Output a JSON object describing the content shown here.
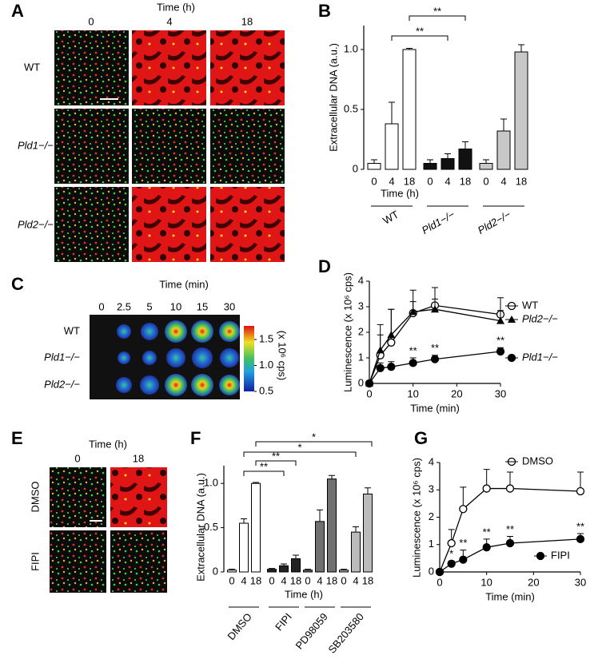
{
  "images": [
    {
      "panel": "A",
      "title": "Time (h)",
      "columns": [
        "0",
        "4",
        "18"
      ],
      "rows": [
        "WT",
        "Pld1−/−",
        "Pld2−/−"
      ]
    },
    {
      "panel": "C",
      "title": "Time (min)",
      "columns": [
        "0",
        "2.5",
        "5",
        "10",
        "15",
        "30"
      ],
      "rows": [
        "WT",
        "Pld1−/−",
        "Pld2−/−"
      ],
      "colorbar": {
        "label": "(x 10⁶ cps)",
        "ticks": [
          1.5,
          {
            "value": 1,
            "label": "1.0"
          },
          0.5
        ]
      }
    },
    {
      "panel": "E",
      "title": "Time (h)",
      "columns": [
        "0",
        "18"
      ],
      "rows": [
        "DMSO",
        "FIPI"
      ]
    }
  ],
  "chart_data": [
    {
      "type": "bar",
      "panel": "B",
      "ylabel": "Extracellular DNA (a.u.)",
      "xlabel": "Time (h)",
      "categories": [
        "0",
        "4",
        "18"
      ],
      "ylim": [
        0,
        1.2
      ],
      "yticks": [
        0,
        0.5,
        {
          "value": 1,
          "label": "1.0"
        }
      ],
      "series": [
        {
          "name": "WT",
          "color": "#ffffff",
          "values": [
            0.05,
            0.38,
            1.0
          ],
          "errors": [
            0.03,
            0.18,
            0.01
          ]
        },
        {
          "name": "Pld1−/−",
          "italic": true,
          "color": "#111111",
          "values": [
            0.05,
            0.09,
            0.17
          ],
          "errors": [
            0.03,
            0.04,
            0.06
          ]
        },
        {
          "name": "Pld2−/−",
          "italic": true,
          "color": "#c8c8c8",
          "values": [
            0.05,
            0.32,
            0.98
          ],
          "errors": [
            0.03,
            0.1,
            0.06
          ]
        }
      ],
      "significance": [
        "**",
        "**"
      ]
    },
    {
      "type": "line",
      "panel": "D",
      "ylabel": "Luminescence (x 10⁶ cps)",
      "xlabel": "Time (min)",
      "x": [
        0,
        2.5,
        5,
        10,
        15,
        30
      ],
      "xlim": [
        0,
        30
      ],
      "xticks": [
        0,
        10,
        20,
        30
      ],
      "ylim": [
        0,
        4
      ],
      "yticks": [
        0,
        1,
        2,
        3,
        4
      ],
      "series": [
        {
          "name": "WT",
          "marker": "circle-open",
          "color": "#000000",
          "values": [
            0,
            1.1,
            1.6,
            2.75,
            3.05,
            2.7
          ],
          "errors": [
            0,
            1.2,
            1.3,
            0.9,
            0.7,
            0.65
          ]
        },
        {
          "name": "Pld2−/−",
          "italic": true,
          "marker": "triangle",
          "color": "#000000",
          "values": [
            0,
            1.3,
            1.9,
            2.8,
            2.9,
            2.45
          ],
          "errors": [
            0,
            0.6,
            1.0,
            0.4,
            0.4,
            0.4
          ]
        },
        {
          "name": "Pld1−/−",
          "italic": true,
          "marker": "circle",
          "color": "#000000",
          "values": [
            0,
            0.6,
            0.65,
            0.8,
            0.95,
            1.25
          ],
          "errors": [
            0,
            0.2,
            0.2,
            0.2,
            0.15,
            0.15
          ]
        }
      ],
      "annotations": [
        {
          "text": "**",
          "x": 10
        },
        {
          "text": "**",
          "x": 15
        },
        {
          "text": "**",
          "x": 30
        }
      ]
    },
    {
      "type": "bar",
      "panel": "F",
      "ylabel": "Extracellular DNA (a.u.)",
      "xlabel": "Time (h)",
      "categories": [
        "0",
        "4",
        "18"
      ],
      "ylim": [
        0,
        1.2
      ],
      "yticks": [
        0,
        0.5,
        {
          "value": 1,
          "label": "1.0"
        }
      ],
      "series": [
        {
          "name": "DMSO",
          "color": "#ffffff",
          "values": [
            0.02,
            0.55,
            1.0
          ],
          "errors": [
            0.01,
            0.05,
            0.01
          ]
        },
        {
          "name": "FIPI",
          "color": "#222222",
          "values": [
            0.03,
            0.07,
            0.15
          ],
          "errors": [
            0.01,
            0.02,
            0.04
          ]
        },
        {
          "name": "PD98059",
          "color": "#707070",
          "values": [
            0.02,
            0.57,
            1.05
          ],
          "errors": [
            0.01,
            0.13,
            0.04
          ]
        },
        {
          "name": "SB203580",
          "color": "#bbbbbb",
          "values": [
            0.02,
            0.45,
            0.88
          ],
          "errors": [
            0.01,
            0.06,
            0.07
          ]
        }
      ],
      "significance": [
        "*",
        "*",
        "**",
        "**"
      ]
    },
    {
      "type": "line",
      "panel": "G",
      "ylabel": "Luminescence (x 10⁶ cps)",
      "xlabel": "Time (min)",
      "x": [
        0,
        2.5,
        5,
        10,
        15,
        30
      ],
      "xlim": [
        0,
        30
      ],
      "xticks": [
        0,
        10,
        20,
        30
      ],
      "ylim": [
        0,
        4
      ],
      "yticks": [
        0,
        1,
        2,
        3,
        4
      ],
      "series": [
        {
          "name": "DMSO",
          "marker": "circle-open",
          "color": "#000000",
          "values": [
            0,
            1.05,
            2.3,
            3.05,
            3.05,
            2.95
          ],
          "errors": [
            0,
            0.5,
            0.8,
            0.7,
            0.6,
            0.7
          ]
        },
        {
          "name": "FIPI",
          "marker": "circle",
          "color": "#000000",
          "values": [
            0,
            0.3,
            0.45,
            0.9,
            1.05,
            1.2
          ],
          "errors": [
            0,
            0.1,
            0.35,
            0.3,
            0.25,
            0.2
          ]
        }
      ],
      "annotations": [
        {
          "text": "*",
          "x": 2.5
        },
        {
          "text": "**",
          "x": 5
        },
        {
          "text": "**",
          "x": 10
        },
        {
          "text": "**",
          "x": 15
        },
        {
          "text": "**",
          "x": 30
        }
      ]
    }
  ]
}
